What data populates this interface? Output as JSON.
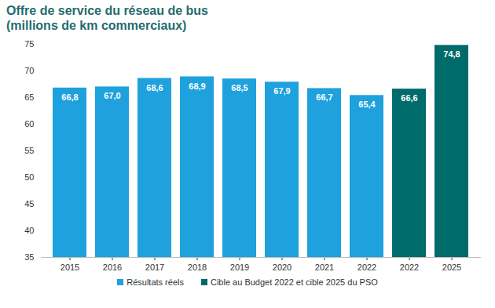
{
  "chart_data": {
    "type": "bar",
    "title": "Offre de service du réseau de bus",
    "subtitle": "(millions de km commerciaux)",
    "categories": [
      "2015",
      "2016",
      "2017",
      "2018",
      "2019",
      "2020",
      "2021",
      "2022",
      "2022",
      "2025"
    ],
    "series": [
      {
        "name": "Résultats réels",
        "color": "#1ea1dc",
        "values": [
          66.8,
          67.0,
          68.6,
          68.9,
          68.5,
          67.9,
          66.7,
          65.4,
          null,
          null
        ],
        "value_labels": [
          "66,8",
          "67,0",
          "68,6",
          "68,9",
          "68,5",
          "67,9",
          "66,7",
          "65,4",
          null,
          null
        ]
      },
      {
        "name": "Cible au Budget 2022 et cible 2025 du PSO",
        "color": "#006b6b",
        "values": [
          null,
          null,
          null,
          null,
          null,
          null,
          null,
          null,
          66.6,
          74.8
        ],
        "value_labels": [
          null,
          null,
          null,
          null,
          null,
          null,
          null,
          null,
          "66,6",
          "74,8"
        ]
      }
    ],
    "ylim": [
      35,
      75
    ],
    "yticks": [
      35,
      40,
      45,
      50,
      55,
      60,
      65,
      70,
      75
    ],
    "grid": false,
    "data_labels": true,
    "legend": "bottom"
  }
}
